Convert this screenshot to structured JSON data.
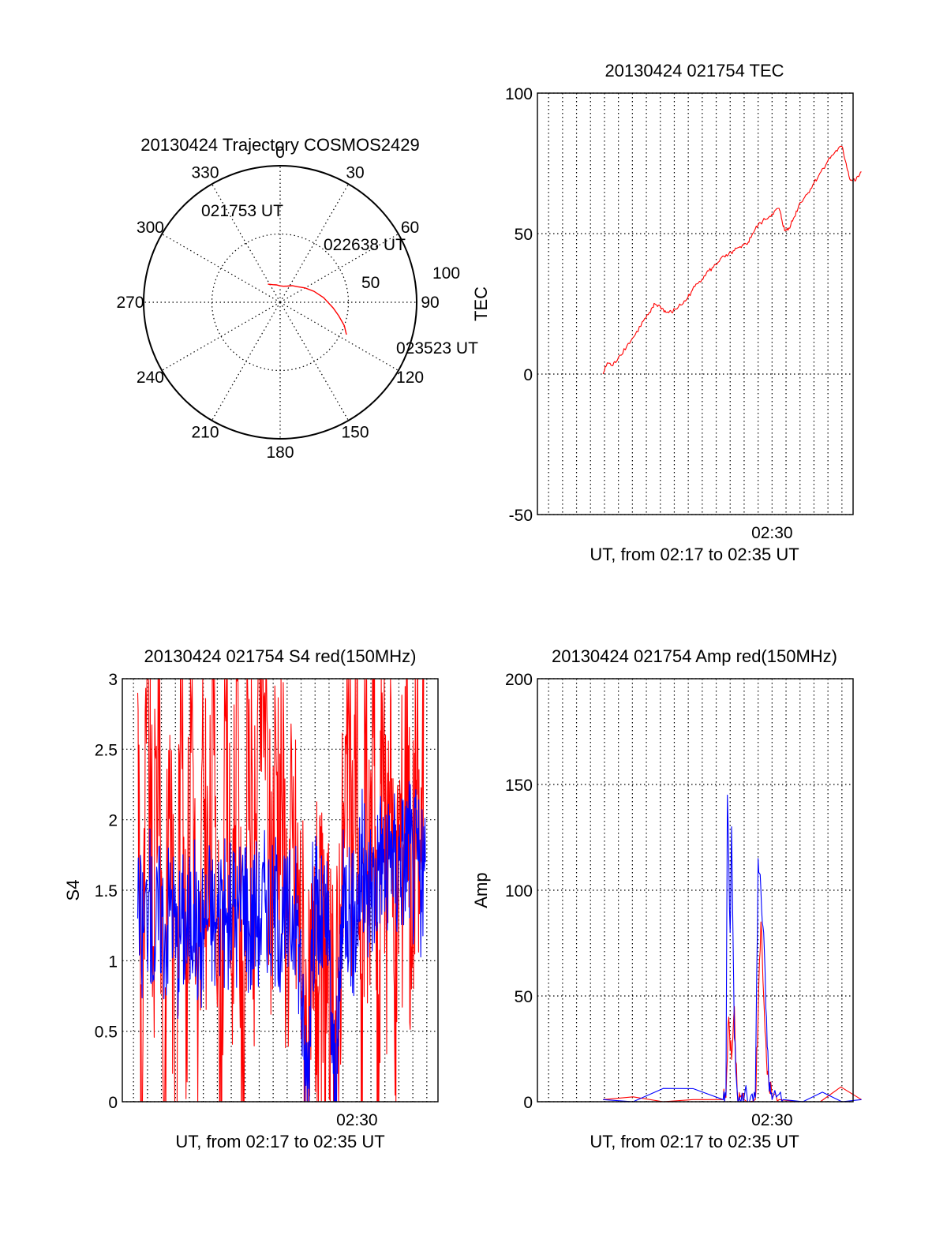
{
  "colors": {
    "red": "#ff0000",
    "blue": "#0000ff",
    "axis": "#000000",
    "background": "#ffffff"
  },
  "chart_data": [
    {
      "type": "polar",
      "title": "20130424 Trajectory COSMOS2429",
      "azimuth_labels": [
        "0",
        "30",
        "60",
        "90",
        "120",
        "150",
        "180",
        "210",
        "240",
        "270",
        "300",
        "330"
      ],
      "radial_labels": [
        "50",
        "100"
      ],
      "elevation_range": [
        0,
        100
      ],
      "start_label": "021753 UT",
      "mid_label": "022638 UT",
      "end_label": "023523 UT",
      "series": [
        {
          "color": "red",
          "points": [
            [
              326,
              84
            ],
            [
              337,
              86
            ],
            [
              348,
              87
            ],
            [
              0,
              88
            ],
            [
              12,
              88
            ],
            [
              24,
              87
            ],
            [
              36,
              85
            ],
            [
              48,
              83
            ],
            [
              60,
              79
            ],
            [
              72,
              74
            ],
            [
              84,
              68
            ],
            [
              96,
              61
            ],
            [
              103,
              56
            ],
            [
              110,
              50
            ],
            [
              116,
              46
            ]
          ]
        }
      ]
    },
    {
      "type": "line",
      "title": "20130424 021754 TEC",
      "ylabel": "TEC",
      "xlabel": "UT, from 02:17 to 02:35 UT",
      "xtick_label": "02:30",
      "xtick_value": 30.0,
      "yticks": [
        "100",
        "50",
        "0",
        "-50"
      ],
      "ylim": [
        -50,
        100
      ],
      "xlim": [
        13.2,
        35.8
      ],
      "x_minor_gridlines": [
        14,
        15,
        16,
        17,
        18,
        19,
        20,
        21,
        22,
        23,
        24,
        25,
        26,
        27,
        28,
        29,
        30,
        31,
        32,
        33,
        34,
        35
      ],
      "series": [
        {
          "color": "red",
          "points": [
            [
              17.9,
              0
            ],
            [
              18.2,
              4
            ],
            [
              18.6,
              3
            ],
            [
              19.0,
              6
            ],
            [
              19.6,
              10
            ],
            [
              20.2,
              14
            ],
            [
              20.8,
              19
            ],
            [
              21.3,
              22
            ],
            [
              21.6,
              25
            ],
            [
              22.0,
              24
            ],
            [
              22.4,
              22
            ],
            [
              22.8,
              22
            ],
            [
              23.3,
              24
            ],
            [
              23.8,
              26
            ],
            [
              24.3,
              30
            ],
            [
              24.8,
              33
            ],
            [
              25.3,
              36
            ],
            [
              25.8,
              38
            ],
            [
              26.3,
              41
            ],
            [
              26.8,
              42
            ],
            [
              27.3,
              44
            ],
            [
              27.8,
              45
            ],
            [
              28.3,
              47
            ],
            [
              28.6,
              50
            ],
            [
              29.0,
              53
            ],
            [
              29.5,
              55
            ],
            [
              30.0,
              57
            ],
            [
              30.5,
              59
            ],
            [
              30.7,
              55
            ],
            [
              30.9,
              51
            ],
            [
              31.2,
              52
            ],
            [
              31.6,
              56
            ],
            [
              32.0,
              61
            ],
            [
              32.5,
              64
            ],
            [
              33.0,
              68
            ],
            [
              33.5,
              72
            ],
            [
              34.0,
              76
            ],
            [
              34.5,
              79
            ],
            [
              35.0,
              81
            ],
            [
              35.3,
              75
            ],
            [
              35.6,
              69
            ],
            [
              36.0,
              69
            ],
            [
              36.4,
              72
            ]
          ]
        }
      ]
    },
    {
      "type": "line",
      "title": "20130424 021754 S4 red(150MHz)",
      "ylabel": "S4",
      "xlabel": "UT, from 02:17 to 02:35 UT",
      "xtick_label": "02:30",
      "xtick_value": 30.0,
      "yticks": [
        "3",
        "2.5",
        "2",
        "1.5",
        "1",
        "0.5",
        "0"
      ],
      "ylim": [
        0,
        3
      ],
      "xlim": [
        13.2,
        35.8
      ],
      "x_minor_gridlines": [
        14,
        15,
        16,
        17,
        18,
        19,
        20,
        21,
        22,
        23,
        24,
        25,
        26,
        27,
        28,
        29,
        30,
        31,
        32,
        33,
        34,
        35
      ],
      "series": [
        {
          "color": "red",
          "name": "",
          "description_points": "high-variance samples clipped at 3",
          "points": [
            [
              14.3,
              2.9
            ],
            [
              14.6,
              0
            ],
            [
              15.0,
              3
            ],
            [
              15.4,
              1.1
            ],
            [
              15.8,
              3
            ],
            [
              16.2,
              0
            ],
            [
              16.6,
              2.6
            ],
            [
              17.0,
              0
            ],
            [
              17.4,
              3
            ],
            [
              17.8,
              1.0
            ],
            [
              18.2,
              3
            ],
            [
              18.6,
              0
            ],
            [
              19.0,
              2.4
            ],
            [
              19.4,
              1.3
            ],
            [
              19.8,
              3
            ],
            [
              20.2,
              0
            ],
            [
              20.6,
              2.7
            ],
            [
              21.0,
              0.9
            ],
            [
              21.4,
              3
            ],
            [
              21.8,
              0
            ],
            [
              22.2,
              2.8
            ],
            [
              22.6,
              1.2
            ],
            [
              23.0,
              3
            ],
            [
              23.4,
              2.9
            ],
            [
              23.8,
              1.4
            ],
            [
              24.2,
              2.5
            ],
            [
              24.6,
              2.2
            ],
            [
              25.0,
              1.3
            ],
            [
              25.4,
              1.8
            ],
            [
              25.8,
              1.4
            ],
            [
              26.1,
              1.1
            ],
            [
              26.4,
              0.4
            ],
            [
              26.7,
              0.3
            ],
            [
              27.0,
              1.0
            ],
            [
              27.3,
              0.8
            ],
            [
              27.6,
              1.0
            ],
            [
              27.9,
              0.7
            ],
            [
              28.2,
              0.4
            ],
            [
              28.5,
              0.5
            ],
            [
              28.8,
              1.4
            ],
            [
              29.1,
              1.8
            ],
            [
              29.4,
              2.8
            ],
            [
              29.7,
              1.6
            ],
            [
              30.0,
              3
            ],
            [
              30.3,
              0
            ],
            [
              30.6,
              2.6
            ],
            [
              30.9,
              1.2
            ],
            [
              31.2,
              3
            ],
            [
              31.5,
              0
            ],
            [
              31.8,
              2.9
            ],
            [
              32.1,
              1.3
            ],
            [
              32.4,
              3
            ],
            [
              32.7,
              0.4
            ],
            [
              33.0,
              2.0
            ],
            [
              33.3,
              1.8
            ],
            [
              33.6,
              3
            ],
            [
              33.9,
              0.8
            ],
            [
              34.2,
              2.6
            ],
            [
              34.5,
              1.4
            ],
            [
              34.8,
              3
            ]
          ]
        },
        {
          "color": "blue",
          "name": "",
          "points": [
            [
              14.3,
              1.3
            ],
            [
              14.7,
              1.2
            ],
            [
              15.1,
              1.5
            ],
            [
              15.5,
              1.1
            ],
            [
              15.9,
              1.4
            ],
            [
              16.3,
              1.2
            ],
            [
              16.7,
              1.5
            ],
            [
              17.1,
              1.1
            ],
            [
              17.5,
              1.3
            ],
            [
              17.9,
              1.2
            ],
            [
              18.3,
              1.4
            ],
            [
              18.7,
              1.1
            ],
            [
              19.1,
              1.3
            ],
            [
              19.5,
              1.4
            ],
            [
              19.9,
              1.2
            ],
            [
              20.3,
              1.5
            ],
            [
              20.7,
              1.2
            ],
            [
              21.1,
              1.4
            ],
            [
              21.5,
              1.3
            ],
            [
              21.9,
              1.6
            ],
            [
              22.3,
              1.2
            ],
            [
              22.7,
              1.4
            ],
            [
              23.1,
              1.3
            ],
            [
              23.5,
              1.5
            ],
            [
              23.9,
              1.3
            ],
            [
              24.3,
              1.4
            ],
            [
              24.7,
              1.2
            ],
            [
              25.1,
              1.3
            ],
            [
              25.5,
              1.4
            ],
            [
              25.9,
              1.1
            ],
            [
              26.2,
              0.3
            ],
            [
              26.5,
              0.2
            ],
            [
              26.8,
              1.3
            ],
            [
              27.1,
              1.4
            ],
            [
              27.4,
              1.2
            ],
            [
              27.7,
              1.3
            ],
            [
              28.0,
              1.1
            ],
            [
              28.3,
              0.2
            ],
            [
              28.6,
              0.2
            ],
            [
              28.9,
              1.3
            ],
            [
              29.2,
              1.5
            ],
            [
              29.5,
              1.4
            ],
            [
              29.8,
              1.2
            ],
            [
              30.1,
              1.5
            ],
            [
              30.4,
              1.7
            ],
            [
              30.7,
              1.4
            ],
            [
              31.0,
              1.6
            ],
            [
              31.3,
              1.5
            ],
            [
              31.6,
              1.8
            ],
            [
              31.9,
              1.7
            ],
            [
              32.2,
              1.5
            ],
            [
              32.5,
              1.9
            ],
            [
              32.8,
              1.6
            ],
            [
              33.1,
              1.8
            ],
            [
              33.4,
              1.7
            ],
            [
              33.7,
              1.9
            ],
            [
              34.0,
              1.6
            ],
            [
              34.3,
              1.8
            ],
            [
              34.6,
              1.5
            ],
            [
              34.9,
              1.7
            ]
          ]
        }
      ]
    },
    {
      "type": "line",
      "title": "20130424 021754 Amp red(150MHz)",
      "ylabel": "Amp",
      "xlabel": "UT, from 02:17 to 02:35 UT",
      "xtick_label": "02:30",
      "xtick_value": 30.0,
      "yticks": [
        "200",
        "150",
        "100",
        "50",
        "0"
      ],
      "ylim": [
        0,
        200
      ],
      "xlim": [
        13.2,
        35.8
      ],
      "x_minor_gridlines": [
        14,
        15,
        16,
        17,
        18,
        19,
        20,
        21,
        22,
        23,
        24,
        25,
        26,
        27,
        28,
        29,
        30,
        31,
        32,
        33,
        34,
        35
      ],
      "series": [
        {
          "color": "red",
          "points": [
            [
              17.9,
              1
            ],
            [
              26.5,
              1
            ],
            [
              26.7,
              2
            ],
            [
              26.9,
              40
            ],
            [
              27.1,
              20
            ],
            [
              27.3,
              45
            ],
            [
              27.5,
              5
            ],
            [
              27.7,
              2
            ],
            [
              28.0,
              1
            ],
            [
              28.8,
              1
            ],
            [
              29.0,
              40
            ],
            [
              29.2,
              85
            ],
            [
              29.4,
              50
            ],
            [
              29.6,
              20
            ],
            [
              29.8,
              5
            ],
            [
              30.0,
              2
            ],
            [
              30.5,
              1
            ],
            [
              36.4,
              1
            ]
          ]
        },
        {
          "color": "blue",
          "points": [
            [
              17.9,
              1
            ],
            [
              26.5,
              1
            ],
            [
              26.7,
              3
            ],
            [
              26.8,
              145
            ],
            [
              27.0,
              80
            ],
            [
              27.1,
              130
            ],
            [
              27.3,
              30
            ],
            [
              27.5,
              5
            ],
            [
              27.7,
              1
            ],
            [
              28.0,
              2
            ],
            [
              28.5,
              3
            ],
            [
              28.8,
              2
            ],
            [
              29.0,
              115
            ],
            [
              29.2,
              100
            ],
            [
              29.4,
              80
            ],
            [
              29.6,
              40
            ],
            [
              29.8,
              5
            ],
            [
              30.0,
              1
            ],
            [
              30.4,
              3
            ],
            [
              30.8,
              1
            ],
            [
              36.4,
              1
            ]
          ]
        }
      ]
    }
  ]
}
